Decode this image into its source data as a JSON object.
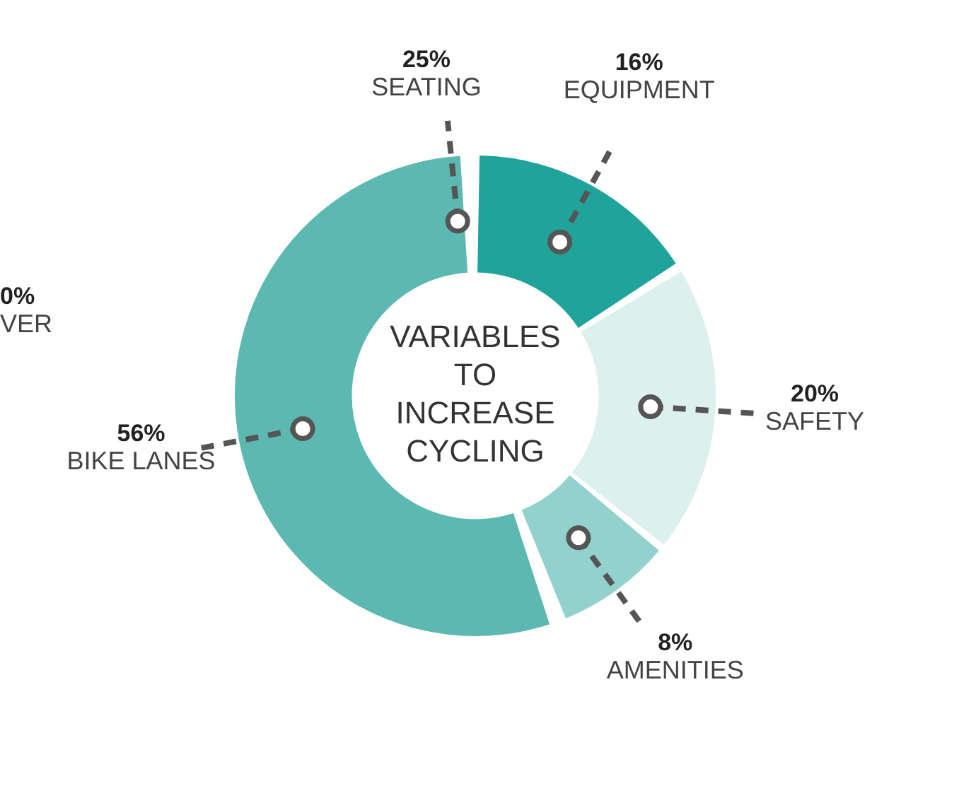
{
  "chart_data": {
    "type": "donut",
    "title": "VARIABLES TO INCREASE CYCLING",
    "categories": [
      "EQUIPMENT",
      "SAFETY",
      "AMENITIES",
      "BIKE LANES"
    ],
    "values": [
      16,
      20,
      8,
      56
    ],
    "value_labels": [
      "16%",
      "20%",
      "8%",
      "56%"
    ],
    "colors": [
      "#20a39a",
      "#dcf0ee",
      "#93d1cc",
      "#5bb9b1"
    ],
    "annotations": [
      "25%",
      "SEATING",
      "0%",
      "VER"
    ],
    "legend": false
  }
}
